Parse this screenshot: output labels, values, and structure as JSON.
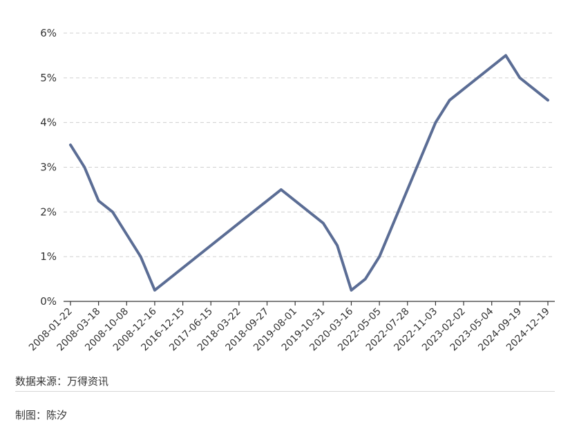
{
  "chart_data": {
    "type": "line",
    "x": [
      "2008-01-22",
      "",
      "2008-03-18",
      "",
      "2008-10-08",
      "",
      "2008-12-16",
      "",
      "2016-12-15",
      "",
      "2017-06-15",
      "",
      "2018-03-22",
      "",
      "2018-09-27",
      "",
      "2019-08-01",
      "",
      "2019-10-31",
      "",
      "2020-03-16",
      "",
      "2022-05-05",
      "",
      "2022-07-28",
      "",
      "2022-11-03",
      "",
      "2023-02-02",
      "",
      "2023-05-04",
      "",
      "2024-09-19",
      "",
      "2024-12-19"
    ],
    "tick_labels": [
      "2008-01-22",
      "2008-03-18",
      "2008-10-08",
      "2008-12-16",
      "2016-12-15",
      "2017-06-15",
      "2018-03-22",
      "2018-09-27",
      "2019-08-01",
      "2019-10-31",
      "2020-03-16",
      "2022-05-05",
      "2022-07-28",
      "2022-11-03",
      "2023-02-02",
      "2023-05-04",
      "2024-09-19",
      "2024-12-19"
    ],
    "series": [
      {
        "values": [
          3.5,
          3.0,
          2.25,
          2.0,
          1.5,
          1.0,
          0.25,
          null,
          null,
          null,
          null,
          null,
          null,
          null,
          null,
          2.5,
          null,
          null,
          1.75,
          1.25,
          0.25,
          0.5,
          1.0,
          null,
          null,
          null,
          4.0,
          4.5,
          null,
          null,
          null,
          5.5,
          5.0,
          null,
          4.5
        ]
      }
    ],
    "series_points": [
      {
        "i": 0,
        "y": 3.5
      },
      {
        "i": 1,
        "y": 3.0
      },
      {
        "i": 2,
        "y": 2.25
      },
      {
        "i": 3,
        "y": 2.0
      },
      {
        "i": 4,
        "y": 1.5
      },
      {
        "i": 5,
        "y": 1.0
      },
      {
        "i": 6,
        "y": 0.25
      },
      {
        "i": 15,
        "y": 2.5
      },
      {
        "i": 18,
        "y": 1.75
      },
      {
        "i": 19,
        "y": 1.25
      },
      {
        "i": 20,
        "y": 0.25
      },
      {
        "i": 21,
        "y": 0.5
      },
      {
        "i": 22,
        "y": 1.0
      },
      {
        "i": 26,
        "y": 4.0
      },
      {
        "i": 27,
        "y": 4.5
      },
      {
        "i": 31,
        "y": 5.5
      },
      {
        "i": 32,
        "y": 5.0
      },
      {
        "i": 34,
        "y": 4.5
      }
    ],
    "y_ticks": [
      "0%",
      "1%",
      "2%",
      "3%",
      "4%",
      "5%",
      "6%"
    ],
    "ylim": [
      0,
      6
    ],
    "grid": "horizontal-dashed",
    "line_color": "#5b6d95"
  },
  "footer": {
    "source": "数据来源：万得资讯",
    "credit": "制图：陈汐"
  }
}
